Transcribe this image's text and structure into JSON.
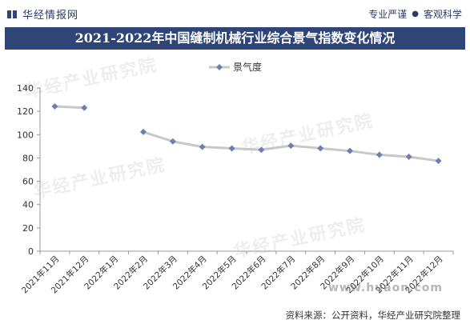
{
  "header": {
    "brand": "华经情报网",
    "tagline_left": "专业严谨",
    "tagline_right": "客观科学"
  },
  "title": "2021-2022年中国缝制机械行业综合景气指数变化情况",
  "watermark": "华经产业研究院",
  "watermark_site": "www.huaon.com",
  "source": "资料来源：公开资料，华经产业研究院整理",
  "colors": {
    "line": "#c8c8c8",
    "marker": "#6b7fb0",
    "title_bg": "#2f4577"
  },
  "chart_data": {
    "type": "line",
    "title": "2021-2022年中国缝制机械行业综合景气指数变化情况",
    "categories": [
      "2021年11月",
      "2021年12月",
      "2022年1月",
      "2022年2月",
      "2022年3月",
      "2022年4月",
      "2022年5月",
      "2022年6月",
      "2022年7月",
      "2022年8月",
      "2022年9月",
      "2022年10月",
      "2022年11月",
      "2022年12月"
    ],
    "series": [
      {
        "name": "景气度",
        "values": [
          124.2,
          123.0,
          null,
          102.3,
          94.2,
          89.5,
          88.2,
          87.0,
          90.5,
          88.3,
          86.0,
          82.7,
          81.0,
          77.5
        ]
      }
    ],
    "ylim": [
      0,
      140
    ],
    "yticks": [
      0,
      20,
      40,
      60,
      80,
      100,
      120,
      140
    ],
    "grid": false,
    "legend": "top-center"
  }
}
